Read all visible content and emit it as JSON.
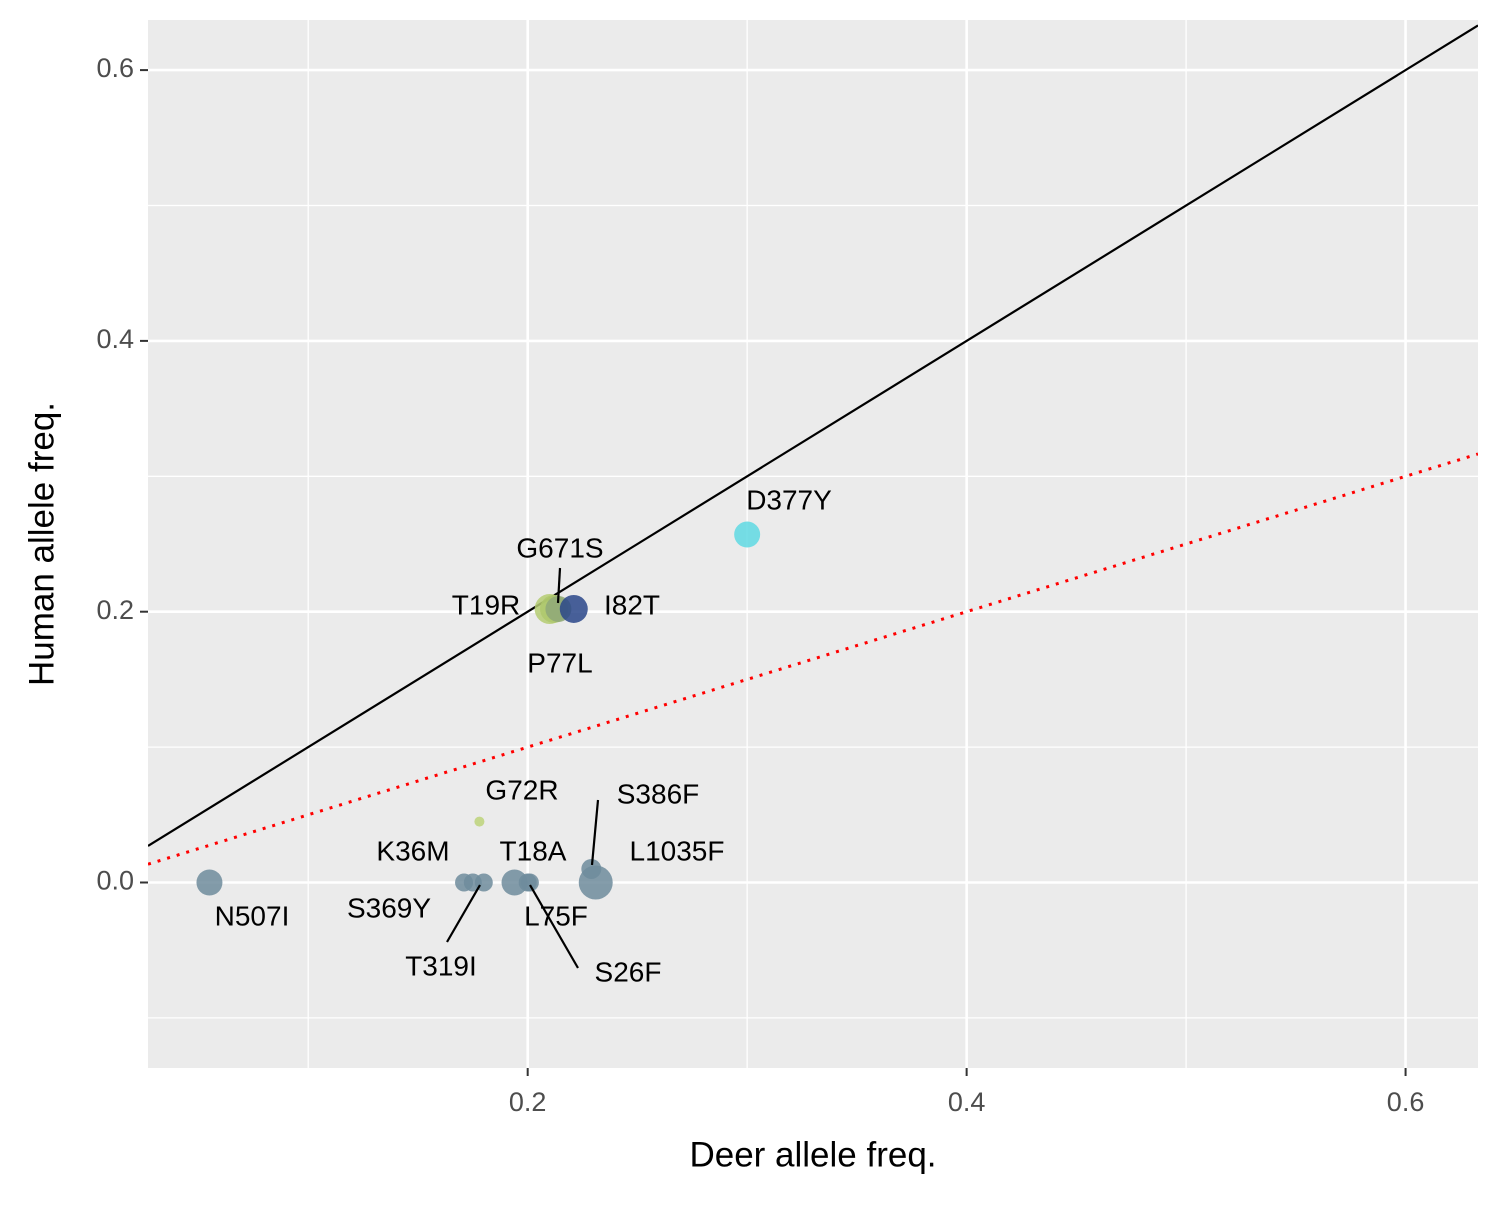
{
  "chart_data": {
    "type": "scatter",
    "xlabel": "Deer allele freq.",
    "ylabel": "Human allele freq.",
    "xlim": [
      0.027,
      0.633
    ],
    "ylim": [
      -0.137,
      0.637
    ],
    "xticks": [
      0.2,
      0.4,
      0.6
    ],
    "yticks": [
      {
        "value": 0,
        "label": "0.0"
      },
      0.2,
      0.4,
      0.6
    ],
    "x_minor_grid": [
      0.1,
      0.3,
      0.5
    ],
    "y_minor_grid": [
      -0.1,
      0.1,
      0.3,
      0.5
    ],
    "grid": true,
    "reference_lines": [
      {
        "slope": 1,
        "intercept": 0,
        "color": "#000000",
        "dash": "solid"
      },
      {
        "slope": 0.5,
        "intercept": 0,
        "color": "#ff0000",
        "dash": "dotted"
      }
    ],
    "points": {
      "labels": [
        "N507I",
        "K36M",
        "S369Y",
        "T319I",
        "T18A",
        "L75F",
        "S26F",
        "S386F",
        "L1035F",
        "G72R",
        "T19R",
        "G671S",
        "P77L",
        "I82T",
        "D377Y"
      ],
      "x": [
        0.055,
        0.171,
        0.175,
        0.18,
        0.194,
        0.201,
        0.2,
        0.229,
        0.231,
        0.178,
        0.21,
        0.212,
        0.214,
        0.221,
        0.3
      ],
      "y": [
        0,
        0,
        0,
        0,
        0,
        0,
        0,
        0.01,
        0,
        0.045,
        0.202,
        0.202,
        0.202,
        0.202,
        0.257
      ],
      "sizes": [
        13,
        9,
        9,
        9,
        13,
        9,
        9,
        10,
        17,
        5,
        15,
        14,
        13,
        14,
        13
      ],
      "colors": [
        "#6f8c9c",
        "#6f8c9c",
        "#6f8c9c",
        "#6f8c9c",
        "#6f8c9c",
        "#6f8c9c",
        "#6f8c9c",
        "#6f8c9c",
        "#6f8c9c",
        "#bdd47a",
        "#b5cd72",
        "#aec86c",
        "#8fa878",
        "#2a478a",
        "#5fd9e3"
      ]
    }
  }
}
